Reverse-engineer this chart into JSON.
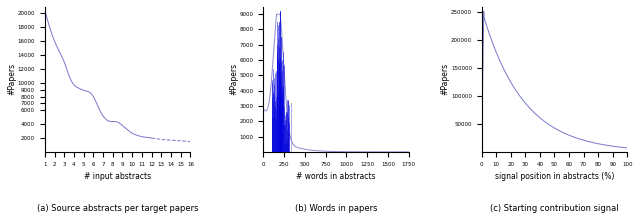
{
  "line_color": "#7777cc",
  "line_color_dark": "#0000dd",
  "line_width": 0.7,
  "captions": [
    "(a) Source abstracts per target papers",
    "(b) Words in papers",
    "(c) Starting contribution signal"
  ],
  "subplot1": {
    "xlabel": "# input abstracts",
    "ylabel": "#Papers",
    "xlim": [
      1,
      16
    ],
    "ylim": [
      0,
      21000
    ],
    "yticks": [
      2000,
      4000,
      6000,
      7000,
      8000,
      9000,
      10000,
      12000,
      14000,
      16000,
      18000,
      20000
    ],
    "xticks": [
      1,
      2,
      3,
      4,
      5,
      6,
      7,
      8,
      9,
      10,
      11,
      12,
      13,
      14,
      15,
      16
    ]
  },
  "subplot2": {
    "xlabel": "# words in abstracts",
    "ylabel": "#Papers",
    "xlim": [
      0,
      1750
    ],
    "ylim": [
      0,
      9500
    ],
    "yticks": [
      1000,
      2000,
      3000,
      4000,
      5000,
      6000,
      7000,
      8000,
      9000
    ],
    "xticks": [
      0,
      250,
      500,
      750,
      1000,
      1250,
      1500,
      1750
    ]
  },
  "subplot3": {
    "xlabel": "signal position in abstracts (%)",
    "ylabel": "#Papers",
    "xlim": [
      0,
      100
    ],
    "ylim": [
      0,
      260000
    ],
    "yticks": [
      50000,
      100000,
      150000,
      200000,
      250000
    ],
    "xticks": [
      0,
      10,
      20,
      30,
      40,
      50,
      60,
      70,
      80,
      90,
      100
    ]
  }
}
